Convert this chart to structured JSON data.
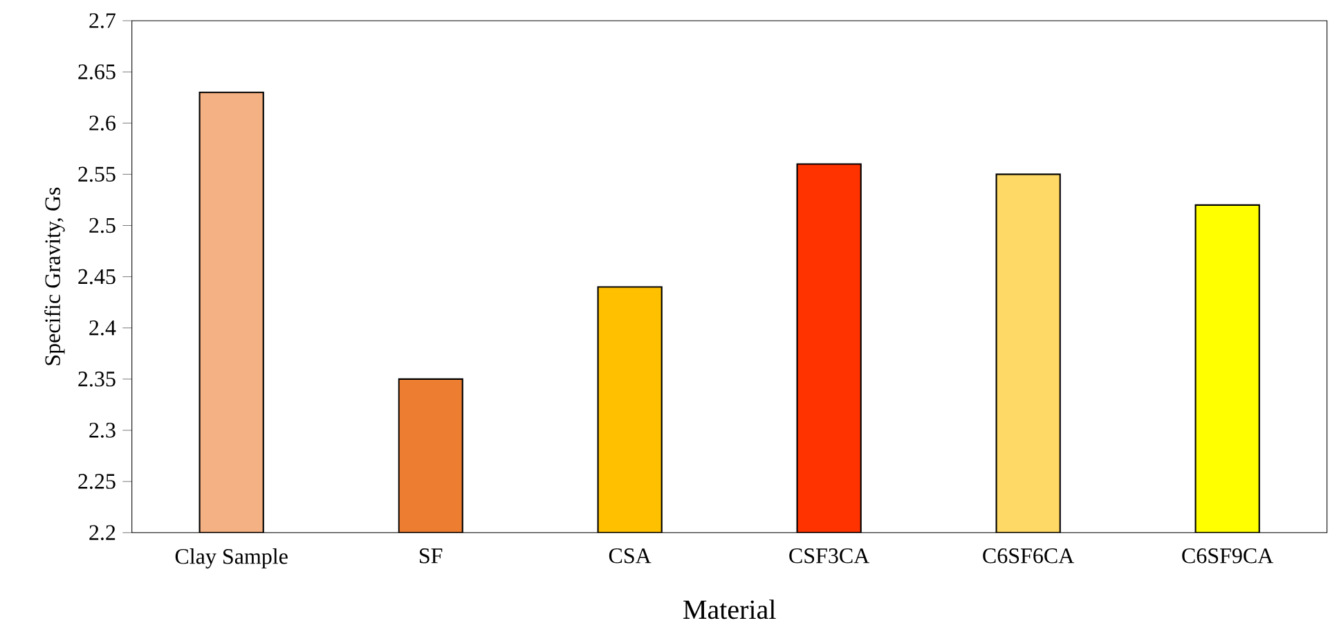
{
  "chart_data": {
    "type": "bar",
    "xlabel": "Material",
    "ylabel": "Specific Gravity, Gs",
    "categories": [
      "Clay Sample",
      "SF",
      "CSA",
      "CSF3CA",
      "C6SF6CA",
      "C6SF9CA"
    ],
    "values": [
      2.63,
      2.35,
      2.44,
      2.56,
      2.55,
      2.52
    ],
    "colors": [
      "#f4b183",
      "#ed7d31",
      "#ffc000",
      "#ff3300",
      "#ffd966",
      "#ffff00"
    ],
    "ylim": [
      2.2,
      2.7
    ],
    "yticks": [
      2.2,
      2.25,
      2.3,
      2.35,
      2.4,
      2.45,
      2.5,
      2.55,
      2.6,
      2.65,
      2.7
    ],
    "grid": false
  }
}
